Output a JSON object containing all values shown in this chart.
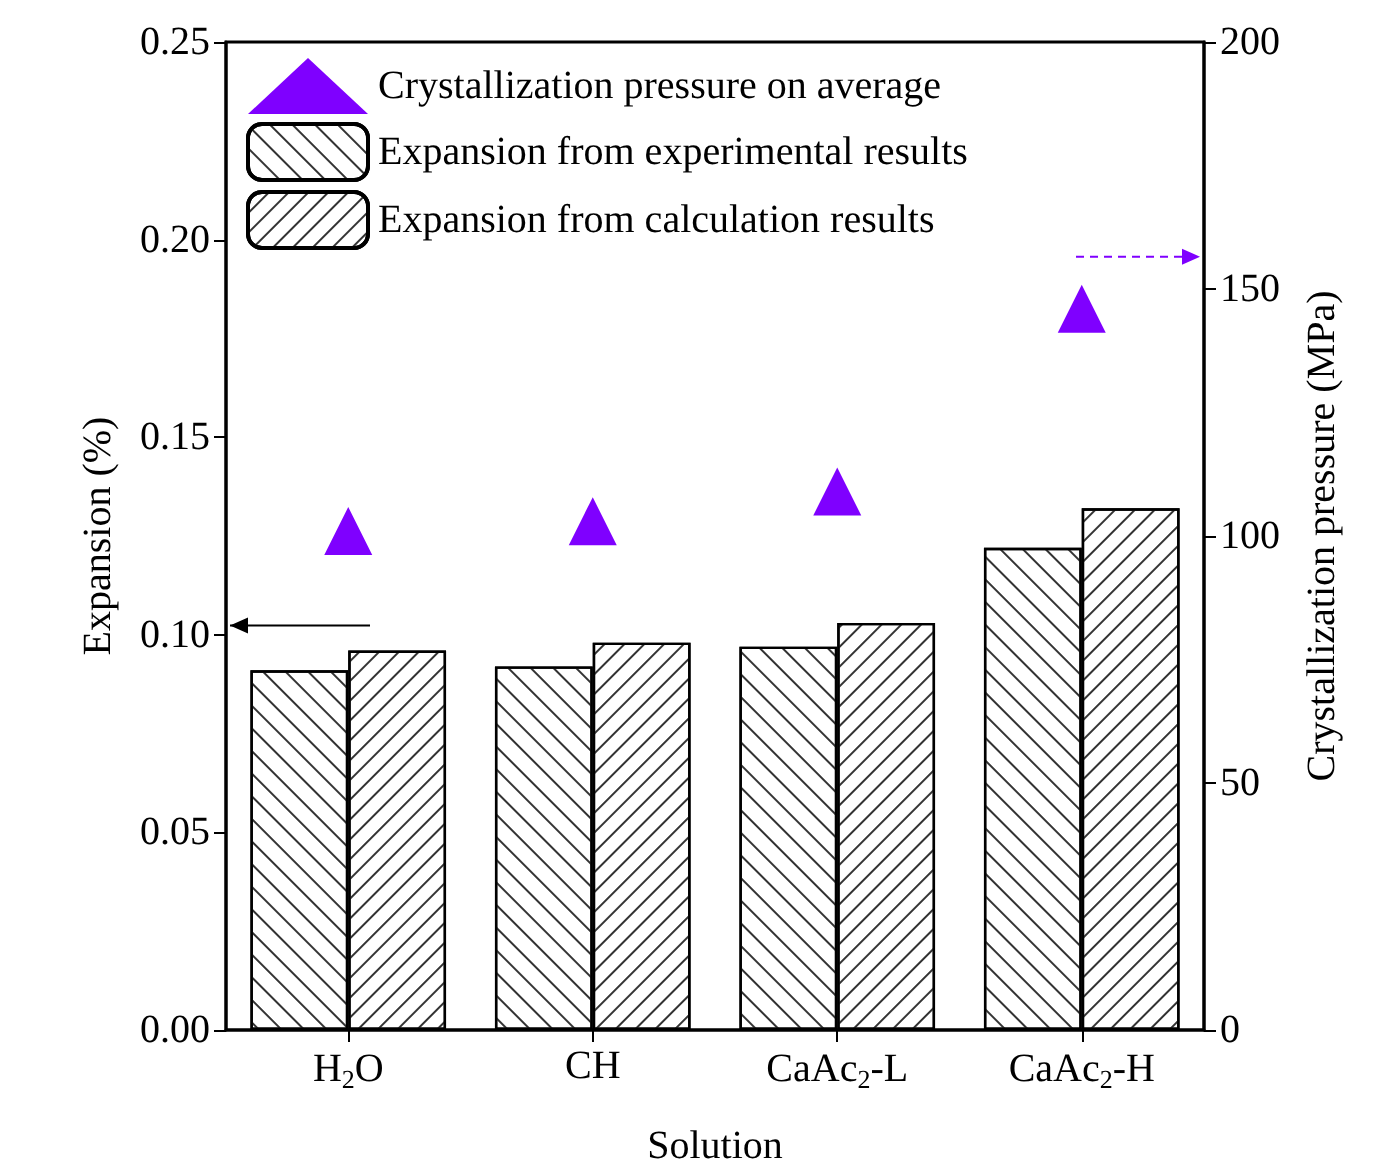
{
  "chart_data": {
    "type": "bar",
    "xlabel": "Solution",
    "ylabel": "Expansion (%)",
    "y2label": "Crystallization pressure (MPa)",
    "categories": [
      "H$_{2}$O",
      "CH",
      "CaAc$_{2}$-L",
      "CaAc$_{2}$-H"
    ],
    "series": [
      {
        "name": "Crystallization pressure on average",
        "type": "scatter",
        "axis": "y2",
        "marker": "triangle",
        "color": "#7f00ff",
        "values": [
          101,
          103,
          109,
          146
        ]
      },
      {
        "name": "Expansion from experimental results",
        "color": "#ffffff",
        "values": [
          0.091,
          0.092,
          0.097,
          0.122
        ]
      },
      {
        "name": "Expansion from calculation results",
        "color": "#ffffff",
        "values": [
          0.096,
          0.098,
          0.103,
          0.132
        ]
      }
    ],
    "ylim": [
      0,
      0.25
    ],
    "yticks": [
      {
        "value": 0,
        "label": "0.00"
      },
      {
        "value": 0.05,
        "label": "0.05"
      },
      {
        "value": 0.1,
        "label": "0.10"
      },
      {
        "value": 0.15,
        "label": "0.15"
      },
      {
        "value": 0.2,
        "label": "0.20"
      },
      {
        "value": 0.25,
        "label": "0.25"
      }
    ],
    "y2lim": [
      0,
      200
    ],
    "y2ticks": [
      0,
      50,
      100,
      150,
      200
    ],
    "grid": false,
    "legend": "top left"
  }
}
